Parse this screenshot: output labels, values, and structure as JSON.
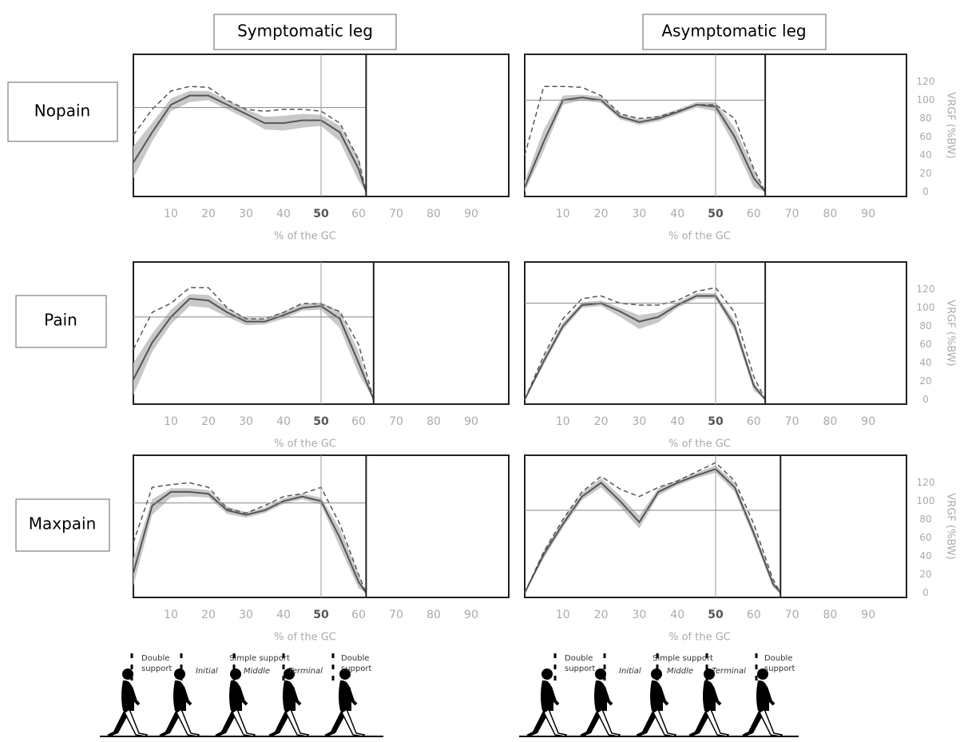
{
  "columns": [
    "Symptomatic leg",
    "Asymptomatic leg"
  ],
  "rows": [
    "Nopain",
    "Pain",
    "Maxpain"
  ],
  "gait_phases": [
    {
      "double_support_1": [
        "Double",
        "support"
      ],
      "simple_support": "Simple support",
      "initial": "Initial",
      "middle": "Middle",
      "terminal": "Terminal",
      "double_support_2": [
        "Double",
        "support"
      ]
    },
    {
      "double_support_1": [
        "Double",
        "support"
      ],
      "simple_support": "Simple support",
      "initial": "Initial",
      "middle": "Middle",
      "terminal": "Terminal",
      "double_support_2": [
        "Double",
        "support"
      ]
    }
  ],
  "chart_data": [
    {
      "type": "line",
      "xlabel": "% of the GC",
      "x": [
        0,
        5,
        10,
        15,
        20,
        25,
        30,
        35,
        40,
        45,
        50,
        55,
        60,
        62
      ],
      "xlim": [
        0,
        100
      ],
      "xticks": [
        10,
        20,
        30,
        40,
        50,
        60,
        70,
        80,
        90
      ],
      "ylim": [
        -5,
        150
      ],
      "hline": 92,
      "vline": 50,
      "series": [
        {
          "color": "#c8c8c8",
          "lower": [
            15,
            55,
            88,
            98,
            100,
            90,
            80,
            68,
            67,
            70,
            72,
            55,
            12,
            0
          ],
          "upper": [
            50,
            75,
            102,
            110,
            110,
            100,
            90,
            82,
            83,
            85,
            84,
            72,
            38,
            0
          ]
        },
        {
          "color": "#555555",
          "values": [
            32,
            65,
            95,
            105,
            105,
            95,
            85,
            75,
            75,
            78,
            78,
            65,
            25,
            0
          ]
        },
        {
          "color": "#555555",
          "dashed": true,
          "values": [
            62,
            90,
            110,
            115,
            114,
            100,
            90,
            88,
            90,
            90,
            88,
            75,
            35,
            0
          ]
        }
      ]
    },
    {
      "type": "line",
      "xlabel": "% of the GC",
      "x": [
        0,
        5,
        10,
        15,
        20,
        25,
        30,
        35,
        40,
        45,
        50,
        55,
        60,
        63
      ],
      "xlim": [
        0,
        100
      ],
      "xticks": [
        10,
        20,
        30,
        40,
        50,
        60,
        70,
        80,
        90
      ],
      "ylim": [
        -5,
        150
      ],
      "yticks": [
        0,
        20,
        40,
        60,
        80,
        100,
        120
      ],
      "ylabel": "VRGF (%BW)",
      "hline": 100,
      "vline": 50,
      "series": [
        {
          "color": "#c8c8c8",
          "lower": [
            0,
            45,
            95,
            100,
            97,
            79,
            73,
            77,
            84,
            92,
            88,
            50,
            5,
            0
          ],
          "upper": [
            12,
            68,
            105,
            106,
            104,
            85,
            79,
            83,
            90,
            98,
            98,
            70,
            25,
            0
          ]
        },
        {
          "color": "#555555",
          "values": [
            5,
            55,
            100,
            103,
            100,
            82,
            76,
            80,
            87,
            95,
            93,
            60,
            15,
            0
          ]
        },
        {
          "color": "#555555",
          "dashed": true,
          "values": [
            40,
            115,
            115,
            114,
            105,
            85,
            80,
            82,
            88,
            95,
            95,
            80,
            25,
            0
          ]
        }
      ]
    },
    {
      "type": "line",
      "xlabel": "% of the GC",
      "x": [
        0,
        5,
        10,
        15,
        20,
        25,
        30,
        35,
        40,
        45,
        50,
        55,
        60,
        64
      ],
      "xlim": [
        0,
        100
      ],
      "xticks": [
        10,
        20,
        30,
        40,
        50,
        60,
        70,
        80,
        90
      ],
      "ylim": [
        -5,
        150
      ],
      "hline": 90,
      "vline": 50,
      "series": [
        {
          "color": "#c8c8c8",
          "lower": [
            5,
            52,
            82,
            102,
            100,
            90,
            81,
            82,
            88,
            97,
            98,
            78,
            28,
            0
          ],
          "upper": [
            40,
            72,
            98,
            115,
            114,
            100,
            89,
            88,
            96,
            104,
            106,
            96,
            52,
            0
          ]
        },
        {
          "color": "#555555",
          "values": [
            22,
            62,
            90,
            110,
            108,
            95,
            85,
            85,
            92,
            100,
            102,
            88,
            40,
            0
          ]
        },
        {
          "color": "#555555",
          "dashed": true,
          "values": [
            55,
            95,
            105,
            122,
            122,
            100,
            88,
            88,
            95,
            105,
            104,
            96,
            60,
            0
          ]
        }
      ]
    },
    {
      "type": "line",
      "xlabel": "% of the GC",
      "x": [
        0,
        5,
        10,
        15,
        20,
        25,
        30,
        35,
        40,
        45,
        50,
        55,
        60,
        63
      ],
      "xlim": [
        0,
        100
      ],
      "xticks": [
        10,
        20,
        30,
        40,
        50,
        60,
        70,
        80,
        90
      ],
      "ylim": [
        -5,
        150
      ],
      "yticks": [
        0,
        20,
        40,
        60,
        80,
        100,
        120
      ],
      "ylabel": "VRGF (%BW)",
      "hline": 105,
      "vline": 50,
      "series": [
        {
          "color": "#c8c8c8",
          "lower": [
            0,
            38,
            76,
            100,
            102,
            90,
            77,
            84,
            100,
            110,
            110,
            74,
            10,
            0
          ],
          "upper": [
            0,
            46,
            84,
            106,
            108,
            100,
            92,
            95,
            106,
            116,
            116,
            86,
            20,
            0
          ]
        },
        {
          "color": "#555555",
          "values": [
            0,
            42,
            80,
            103,
            105,
            96,
            85,
            90,
            103,
            113,
            113,
            80,
            15,
            0
          ]
        },
        {
          "color": "#555555",
          "dashed": true,
          "values": [
            0,
            48,
            88,
            110,
            113,
            105,
            103,
            103,
            108,
            118,
            122,
            95,
            25,
            0
          ]
        }
      ]
    },
    {
      "type": "line",
      "xlabel": "% of the GC",
      "x": [
        0,
        5,
        10,
        15,
        20,
        25,
        30,
        35,
        40,
        45,
        50,
        55,
        60,
        62
      ],
      "xlim": [
        0,
        100
      ],
      "xticks": [
        10,
        20,
        30,
        40,
        50,
        60,
        70,
        80,
        90
      ],
      "ylim": [
        -5,
        150
      ],
      "hline": 98,
      "vline": 50,
      "series": [
        {
          "color": "#c8c8c8",
          "lower": [
            8,
            85,
            104,
            105,
            104,
            86,
            82,
            87,
            97,
            102,
            96,
            50,
            5,
            0
          ],
          "upper": [
            38,
            102,
            114,
            114,
            112,
            94,
            88,
            93,
            103,
            108,
            104,
            70,
            20,
            0
          ]
        },
        {
          "color": "#555555",
          "values": [
            22,
            95,
            110,
            110,
            108,
            90,
            85,
            90,
            100,
            105,
            100,
            60,
            12,
            0
          ]
        },
        {
          "color": "#555555",
          "dashed": true,
          "values": [
            55,
            115,
            118,
            120,
            115,
            92,
            87,
            95,
            105,
            108,
            115,
            75,
            20,
            0
          ]
        }
      ]
    },
    {
      "type": "line",
      "xlabel": "% of the GC",
      "x": [
        0,
        5,
        10,
        15,
        20,
        25,
        30,
        35,
        40,
        45,
        50,
        55,
        60,
        65,
        67
      ],
      "xlim": [
        0,
        100
      ],
      "xticks": [
        10,
        20,
        30,
        40,
        50,
        60,
        70,
        80,
        90
      ],
      "ylim": [
        -5,
        150
      ],
      "yticks": [
        0,
        20,
        40,
        60,
        80,
        100,
        120
      ],
      "ylabel": "VRGF (%BW)",
      "hline": 90,
      "vline": 50,
      "series": [
        {
          "color": "#c8c8c8",
          "lower": [
            0,
            38,
            71,
            101,
            115,
            94,
            70,
            106,
            117,
            125,
            131,
            110,
            60,
            6,
            0
          ],
          "upper": [
            0,
            46,
            79,
            109,
            125,
            106,
            84,
            114,
            123,
            131,
            139,
            120,
            70,
            14,
            0
          ]
        },
        {
          "color": "#555555",
          "values": [
            0,
            42,
            75,
            105,
            120,
            100,
            77,
            110,
            120,
            128,
            135,
            115,
            65,
            10,
            0
          ]
        },
        {
          "color": "#555555",
          "dashed": true,
          "values": [
            0,
            45,
            80,
            110,
            127,
            113,
            105,
            115,
            122,
            132,
            142,
            122,
            75,
            15,
            0
          ]
        }
      ]
    }
  ]
}
